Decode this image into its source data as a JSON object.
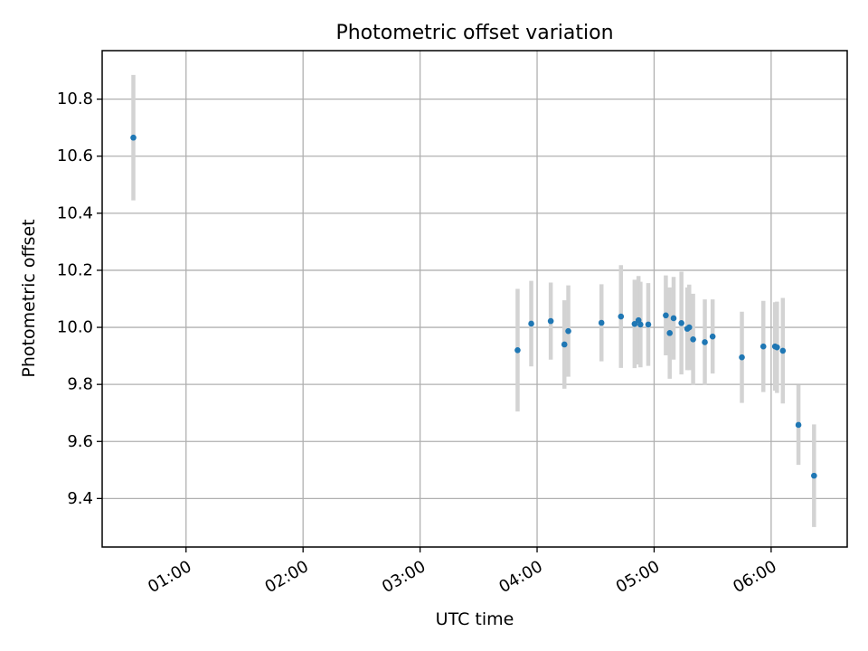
{
  "chart_data": {
    "type": "scatter",
    "title": "Photometric offset variation",
    "xlabel": "UTC time",
    "ylabel": "Photometric offset",
    "grid": true,
    "legend": "none",
    "x_ticks": [
      "01:00",
      "02:00",
      "03:00",
      "04:00",
      "05:00",
      "06:00"
    ],
    "y_ticks": [
      "9.4",
      "9.6",
      "9.8",
      "10.0",
      "10.2",
      "10.4",
      "10.6",
      "10.8"
    ],
    "xlim": [
      "00:17",
      "06:39"
    ],
    "ylim": [
      9.23,
      10.97
    ],
    "colors": {
      "point": "#1f77b4",
      "errorbar": "#d3d3d3",
      "grid": "#b0b0b0"
    },
    "series": [
      {
        "points": [
          {
            "x": "00:33",
            "y": 10.665,
            "err": 0.22
          },
          {
            "x": "03:50",
            "y": 9.92,
            "err": 0.215
          },
          {
            "x": "03:57",
            "y": 10.013,
            "err": 0.15
          },
          {
            "x": "04:07",
            "y": 10.022,
            "err": 0.135
          },
          {
            "x": "04:14",
            "y": 9.94,
            "err": 0.155
          },
          {
            "x": "04:16",
            "y": 9.987,
            "err": 0.16
          },
          {
            "x": "04:33",
            "y": 10.016,
            "err": 0.135
          },
          {
            "x": "04:43",
            "y": 10.038,
            "err": 0.18
          },
          {
            "x": "04:50",
            "y": 10.012,
            "err": 0.155
          },
          {
            "x": "04:52",
            "y": 10.025,
            "err": 0.155
          },
          {
            "x": "04:53",
            "y": 10.01,
            "err": 0.15
          },
          {
            "x": "04:57",
            "y": 10.01,
            "err": 0.145
          },
          {
            "x": "05:06",
            "y": 10.042,
            "err": 0.14
          },
          {
            "x": "05:08",
            "y": 9.98,
            "err": 0.16
          },
          {
            "x": "05:10",
            "y": 10.032,
            "err": 0.145
          },
          {
            "x": "05:14",
            "y": 10.015,
            "err": 0.18
          },
          {
            "x": "05:17",
            "y": 9.995,
            "err": 0.145
          },
          {
            "x": "05:18",
            "y": 10.0,
            "err": 0.15
          },
          {
            "x": "05:20",
            "y": 9.958,
            "err": 0.16
          },
          {
            "x": "05:26",
            "y": 9.948,
            "err": 0.15
          },
          {
            "x": "05:30",
            "y": 9.968,
            "err": 0.13
          },
          {
            "x": "05:45",
            "y": 9.895,
            "err": 0.16
          },
          {
            "x": "05:56",
            "y": 9.933,
            "err": 0.16
          },
          {
            "x": "06:02",
            "y": 9.933,
            "err": 0.155
          },
          {
            "x": "06:03",
            "y": 9.93,
            "err": 0.16
          },
          {
            "x": "06:06",
            "y": 9.918,
            "err": 0.185
          },
          {
            "x": "06:14",
            "y": 9.658,
            "err": 0.14
          },
          {
            "x": "06:22",
            "y": 9.48,
            "err": 0.18
          }
        ]
      }
    ]
  }
}
